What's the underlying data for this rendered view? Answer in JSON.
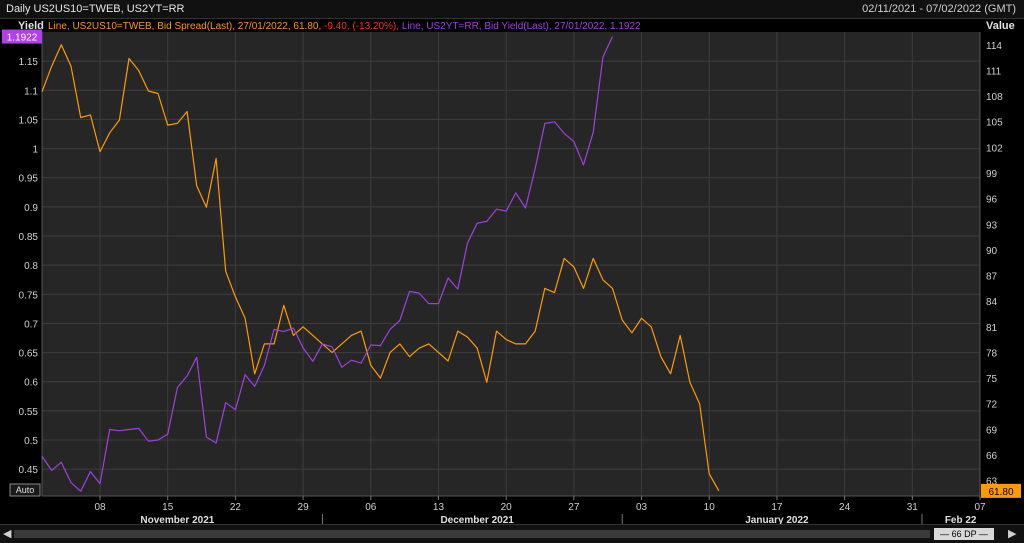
{
  "window": {
    "title": "Daily US2US10=TWEB, US2YT=RR",
    "date_range": "02/11/2021 - 07/02/2022 (GMT)"
  },
  "controls": {
    "auto_label": "Auto",
    "dp_label": "66 DP",
    "scroll_left_icon": "triangle-left",
    "scroll_right_icon": "triangle-right"
  },
  "colors": {
    "background": "#000000",
    "plot_background": "#262626",
    "grid": "#3d3d3d",
    "spread_series": "#ff9a00",
    "yield_series": "#a040e0",
    "negative_change": "#ff2a2a",
    "spread_badge": "#ff9a00",
    "yield_badge": "#b040e8"
  },
  "chart_data": {
    "type": "line",
    "legend": {
      "spread": {
        "prefix": "Line, US2US10=TWEB, Bid Spread(Last), 27/01/2022, 61.80, ",
        "change": "-9.40, (-13.20%), "
      },
      "yield": {
        "text": "Line, US2YT=RR, Bid Yield(Last), 27/01/2022, 1.1922"
      }
    },
    "left_axis": {
      "label": "Yield",
      "ylim": [
        0.404,
        1.2
      ],
      "ticks": [
        "0.45",
        "0.5",
        "0.55",
        "0.6",
        "0.65",
        "0.7",
        "0.75",
        "0.8",
        "0.85",
        "0.9",
        "0.95",
        "1",
        "1.05",
        "1.1",
        "1.15"
      ],
      "tick_values": [
        0.45,
        0.5,
        0.55,
        0.6,
        0.65,
        0.7,
        0.75,
        0.8,
        0.85,
        0.9,
        0.95,
        1.0,
        1.05,
        1.1,
        1.15
      ],
      "current_badge": "1.1922",
      "current_value": 1.1922
    },
    "right_axis": {
      "label": "Value",
      "ylim": [
        61.2,
        115.5
      ],
      "ticks": [
        "63",
        "66",
        "69",
        "72",
        "75",
        "78",
        "81",
        "84",
        "87",
        "90",
        "93",
        "96",
        "99",
        "102",
        "105",
        "108",
        "111",
        "114"
      ],
      "tick_values": [
        63,
        66,
        69,
        72,
        75,
        78,
        81,
        84,
        87,
        90,
        93,
        96,
        99,
        102,
        105,
        108,
        111,
        114
      ],
      "current_badge": "61.80",
      "current_value": 61.8
    },
    "x_axis": {
      "start": "2021-11-02",
      "end": "2022-02-07",
      "day_ticks": [
        {
          "date": "2021-11-08",
          "label": "08"
        },
        {
          "date": "2021-11-15",
          "label": "15"
        },
        {
          "date": "2021-11-22",
          "label": "22"
        },
        {
          "date": "2021-11-29",
          "label": "29"
        },
        {
          "date": "2021-12-06",
          "label": "06"
        },
        {
          "date": "2021-12-13",
          "label": "13"
        },
        {
          "date": "2021-12-20",
          "label": "20"
        },
        {
          "date": "2021-12-27",
          "label": "27"
        },
        {
          "date": "2022-01-03",
          "label": "03"
        },
        {
          "date": "2022-01-10",
          "label": "10"
        },
        {
          "date": "2022-01-17",
          "label": "17"
        },
        {
          "date": "2022-01-24",
          "label": "24"
        },
        {
          "date": "2022-01-31",
          "label": "31"
        },
        {
          "date": "2022-02-07",
          "label": "07"
        }
      ],
      "month_labels": [
        {
          "date": "2021-11-16",
          "label": "November 2021"
        },
        {
          "date": "2021-12-17",
          "label": "December 2021"
        },
        {
          "date": "2022-01-17",
          "label": "January 2022"
        },
        {
          "date": "2022-02-05",
          "label": "Feb 22"
        }
      ],
      "month_dividers": [
        "2021-12-01",
        "2022-01-01",
        "2022-02-01"
      ]
    },
    "series": [
      {
        "name": "US2US10=TWEB",
        "axis": "right",
        "color": "#ff9a00",
        "points": [
          [
            "2021-11-02",
            108.5
          ],
          [
            "2021-11-03",
            111.5
          ],
          [
            "2021-11-04",
            114.0
          ],
          [
            "2021-11-05",
            111.5
          ],
          [
            "2021-11-06",
            105.5
          ],
          [
            "2021-11-07",
            105.8
          ],
          [
            "2021-11-08",
            101.5
          ],
          [
            "2021-11-09",
            103.7
          ],
          [
            "2021-11-10",
            105.2
          ],
          [
            "2021-11-11",
            112.4
          ],
          [
            "2021-11-12",
            111.0
          ],
          [
            "2021-11-13",
            108.6
          ],
          [
            "2021-11-14",
            108.3
          ],
          [
            "2021-11-15",
            104.6
          ],
          [
            "2021-11-16",
            104.8
          ],
          [
            "2021-11-17",
            106.2
          ],
          [
            "2021-11-18",
            97.5
          ],
          [
            "2021-11-19",
            95.0
          ],
          [
            "2021-11-20",
            100.7
          ],
          [
            "2021-11-21",
            87.5
          ],
          [
            "2021-11-22",
            84.5
          ],
          [
            "2021-11-23",
            82.0
          ],
          [
            "2021-11-24",
            75.5
          ],
          [
            "2021-11-25",
            79.0
          ],
          [
            "2021-11-26",
            79.0
          ],
          [
            "2021-11-27",
            83.5
          ],
          [
            "2021-11-28",
            80.0
          ],
          [
            "2021-11-29",
            81.0
          ],
          [
            "2021-11-30",
            80.0
          ],
          [
            "2021-12-01",
            79.0
          ],
          [
            "2021-12-02",
            78.0
          ],
          [
            "2021-12-03",
            79.0
          ],
          [
            "2021-12-04",
            80.0
          ],
          [
            "2021-12-05",
            80.5
          ],
          [
            "2021-12-06",
            76.5
          ],
          [
            "2021-12-07",
            75.0
          ],
          [
            "2021-12-08",
            78.0
          ],
          [
            "2021-12-09",
            79.0
          ],
          [
            "2021-12-10",
            77.5
          ],
          [
            "2021-12-11",
            78.5
          ],
          [
            "2021-12-12",
            79.0
          ],
          [
            "2021-12-13",
            78.0
          ],
          [
            "2021-12-14",
            77.0
          ],
          [
            "2021-12-15",
            80.5
          ],
          [
            "2021-12-16",
            79.8
          ],
          [
            "2021-12-17",
            78.5
          ],
          [
            "2021-12-18",
            74.5
          ],
          [
            "2021-12-19",
            80.5
          ],
          [
            "2021-12-20",
            79.5
          ],
          [
            "2021-12-21",
            79.0
          ],
          [
            "2021-12-22",
            79.0
          ],
          [
            "2021-12-23",
            80.5
          ],
          [
            "2021-12-24",
            85.5
          ],
          [
            "2021-12-25",
            85.0
          ],
          [
            "2021-12-26",
            89.0
          ],
          [
            "2021-12-27",
            88.0
          ],
          [
            "2021-12-28",
            85.5
          ],
          [
            "2021-12-29",
            89.0
          ],
          [
            "2021-12-30",
            86.5
          ],
          [
            "2021-12-31",
            85.5
          ],
          [
            "2022-01-01",
            81.8
          ],
          [
            "2022-01-02",
            80.3
          ],
          [
            "2022-01-03",
            82.0
          ],
          [
            "2022-01-04",
            81.0
          ],
          [
            "2022-01-05",
            77.5
          ],
          [
            "2022-01-06",
            75.5
          ],
          [
            "2022-01-07",
            80.0
          ],
          [
            "2022-01-08",
            74.5
          ],
          [
            "2022-01-09",
            72.0
          ],
          [
            "2022-01-10",
            63.8
          ],
          [
            "2022-01-11",
            61.8
          ]
        ]
      },
      {
        "name": "US2YT=RR",
        "axis": "left",
        "color": "#a040e0",
        "points": [
          [
            "2021-11-02",
            0.472
          ],
          [
            "2021-11-03",
            0.448
          ],
          [
            "2021-11-04",
            0.462
          ],
          [
            "2021-11-05",
            0.427
          ],
          [
            "2021-11-06",
            0.412
          ],
          [
            "2021-11-07",
            0.446
          ],
          [
            "2021-11-08",
            0.425
          ],
          [
            "2021-11-09",
            0.518
          ],
          [
            "2021-11-10",
            0.516
          ],
          [
            "2021-11-11",
            0.518
          ],
          [
            "2021-11-12",
            0.52
          ],
          [
            "2021-11-13",
            0.498
          ],
          [
            "2021-11-14",
            0.5
          ],
          [
            "2021-11-15",
            0.51
          ],
          [
            "2021-11-16",
            0.59
          ],
          [
            "2021-11-17",
            0.61
          ],
          [
            "2021-11-18",
            0.642
          ],
          [
            "2021-11-19",
            0.505
          ],
          [
            "2021-11-20",
            0.495
          ],
          [
            "2021-11-21",
            0.564
          ],
          [
            "2021-11-22",
            0.552
          ],
          [
            "2021-11-23",
            0.612
          ],
          [
            "2021-11-24",
            0.592
          ],
          [
            "2021-11-25",
            0.628
          ],
          [
            "2021-11-26",
            0.69
          ],
          [
            "2021-11-27",
            0.686
          ],
          [
            "2021-11-28",
            0.692
          ],
          [
            "2021-11-29",
            0.658
          ],
          [
            "2021-11-30",
            0.635
          ],
          [
            "2021-12-01",
            0.665
          ],
          [
            "2021-12-02",
            0.66
          ],
          [
            "2021-12-03",
            0.625
          ],
          [
            "2021-12-04",
            0.637
          ],
          [
            "2021-12-05",
            0.632
          ],
          [
            "2021-12-06",
            0.663
          ],
          [
            "2021-12-07",
            0.662
          ],
          [
            "2021-12-08",
            0.69
          ],
          [
            "2021-12-09",
            0.705
          ],
          [
            "2021-12-10",
            0.755
          ],
          [
            "2021-12-11",
            0.752
          ],
          [
            "2021-12-12",
            0.734
          ],
          [
            "2021-12-13",
            0.734
          ],
          [
            "2021-12-14",
            0.778
          ],
          [
            "2021-12-15",
            0.759
          ],
          [
            "2021-12-16",
            0.838
          ],
          [
            "2021-12-17",
            0.872
          ],
          [
            "2021-12-18",
            0.875
          ],
          [
            "2021-12-19",
            0.896
          ],
          [
            "2021-12-20",
            0.893
          ],
          [
            "2021-12-21",
            0.924
          ],
          [
            "2021-12-22",
            0.898
          ],
          [
            "2021-12-23",
            0.966
          ],
          [
            "2021-12-24",
            1.043
          ],
          [
            "2021-12-25",
            1.046
          ],
          [
            "2021-12-26",
            1.026
          ],
          [
            "2021-12-27",
            1.012
          ],
          [
            "2021-12-28",
            0.972
          ],
          [
            "2021-12-29",
            1.028
          ],
          [
            "2021-12-30",
            1.157
          ],
          [
            "2021-12-31",
            1.1922
          ]
        ]
      }
    ]
  }
}
